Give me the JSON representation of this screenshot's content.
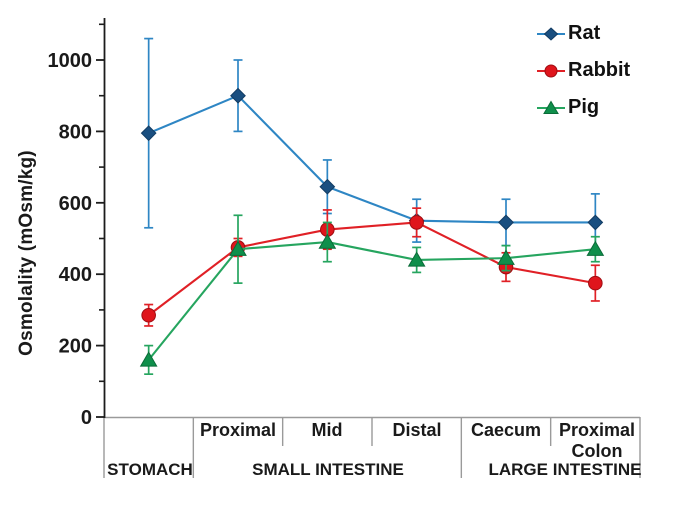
{
  "chart_data": {
    "type": "line",
    "title": "",
    "ylabel": "Osmolality  (mOsm/kg)",
    "xlabel": "",
    "ylim": [
      0,
      1118
    ],
    "yticks": [
      0,
      200,
      400,
      600,
      800,
      1000
    ],
    "minor_tick_interval": 100,
    "grid": false,
    "legend_position": "top-right",
    "categories": [
      "Stomach",
      "Proximal",
      "Mid",
      "Distal",
      "Caecum",
      "Proximal Colon"
    ],
    "x_segment_labels": [
      "",
      "Proximal",
      "Mid",
      "Distal",
      "Caecum",
      "Proximal Colon"
    ],
    "x_group_labels": [
      "STOMACH",
      "SMALL INTESTINE",
      "LARGE INTESTINE"
    ],
    "series": [
      {
        "name": "Rat",
        "marker": "diamond",
        "color": "#2e86c4",
        "marker_fill": "#1a4f80",
        "marker_stroke": "#123c63",
        "values": [
          795,
          900,
          645,
          550,
          545,
          545
        ],
        "errors": [
          265,
          100,
          75,
          60,
          65,
          80
        ]
      },
      {
        "name": "Rabbit",
        "marker": "circle",
        "color": "#e02026",
        "marker_fill": "#df151c",
        "marker_stroke": "#9e0d12",
        "values": [
          285,
          475,
          525,
          545,
          420,
          375
        ],
        "errors": [
          30,
          25,
          55,
          40,
          40,
          50
        ]
      },
      {
        "name": "Pig",
        "marker": "triangle",
        "color": "#26a55f",
        "marker_fill": "#0f8f4b",
        "marker_stroke": "#0a6b38",
        "values": [
          160,
          470,
          490,
          440,
          445,
          470
        ],
        "errors": [
          40,
          95,
          55,
          35,
          35,
          35
        ]
      }
    ],
    "axis_color": "#1c1c1c",
    "table_line_color": "#9a9a9a"
  }
}
